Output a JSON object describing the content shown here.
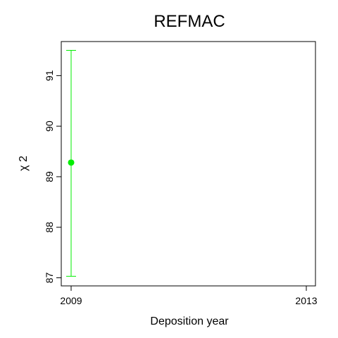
{
  "chart_data": {
    "type": "scatter",
    "title": "REFMAC",
    "xlabel": "Deposition year",
    "ylabel": "χ 2",
    "xlim": [
      2009,
      2013
    ],
    "ylim": [
      87,
      91.6
    ],
    "x_ticks": [
      "2009",
      "2013"
    ],
    "y_ticks": [
      "87",
      "88",
      "89",
      "90",
      "91"
    ],
    "grid": false,
    "points": [
      {
        "x": 2009,
        "y": 89.28,
        "err_low": 87.03,
        "err_high": 91.5
      }
    ],
    "colors": {
      "series": "#00ee00",
      "axes": "#000000"
    }
  }
}
